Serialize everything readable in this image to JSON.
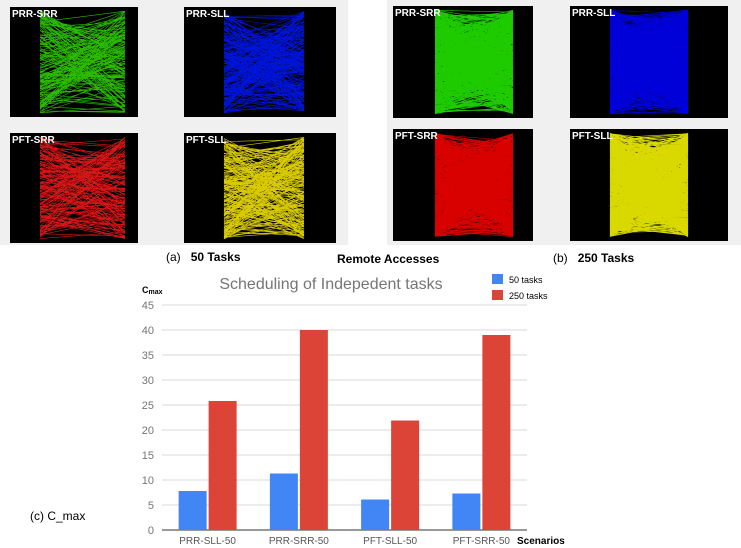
{
  "panels_50": {
    "caption_prefix": "(a)",
    "caption_bold": "50 Tasks",
    "items": [
      {
        "label": "PRR-SRR",
        "color": "#33dd00"
      },
      {
        "label": "PRR-SLL",
        "color": "#0018ff"
      },
      {
        "label": "PFT-SRR",
        "color": "#ff1a1a"
      },
      {
        "label": "PFT-SLL",
        "color": "#ffee00"
      }
    ]
  },
  "panels_250": {
    "caption_prefix": "(b)",
    "caption_bold": "250 Tasks",
    "items": [
      {
        "label": "PRR-SRR",
        "color": "#22ee00"
      },
      {
        "label": "PRR-SLL",
        "color": "#0000ff"
      },
      {
        "label": "PFT-SRR",
        "color": "#ff0000"
      },
      {
        "label": "PFT-SLL",
        "color": "#ffff00"
      }
    ]
  },
  "middle_title": "Remote Accesses",
  "cmax_caption": "(c) C_max",
  "chart_data": {
    "type": "bar",
    "title": "Scheduling of Indepedent tasks",
    "ylabel": "Cmax",
    "ylabel_main": "C",
    "ylabel_sub": "max",
    "xlabel": "Scenarios",
    "categories": [
      "PRR-SLL-50",
      "PRR-SRR-50",
      "PFT-SLL-50",
      "PFT-SRR-50"
    ],
    "series": [
      {
        "name": "50 tasks",
        "color": "#4285f4",
        "values": [
          7.8,
          11.3,
          6.1,
          7.3
        ]
      },
      {
        "name": "250 tasks",
        "color": "#db4437",
        "values": [
          25.8,
          40.0,
          21.9,
          39.0
        ]
      }
    ],
    "ylim": [
      0,
      45
    ],
    "yticks": [
      0,
      5,
      10,
      15,
      20,
      25,
      30,
      35,
      40,
      45
    ],
    "grid": true,
    "legend": "top-right"
  }
}
